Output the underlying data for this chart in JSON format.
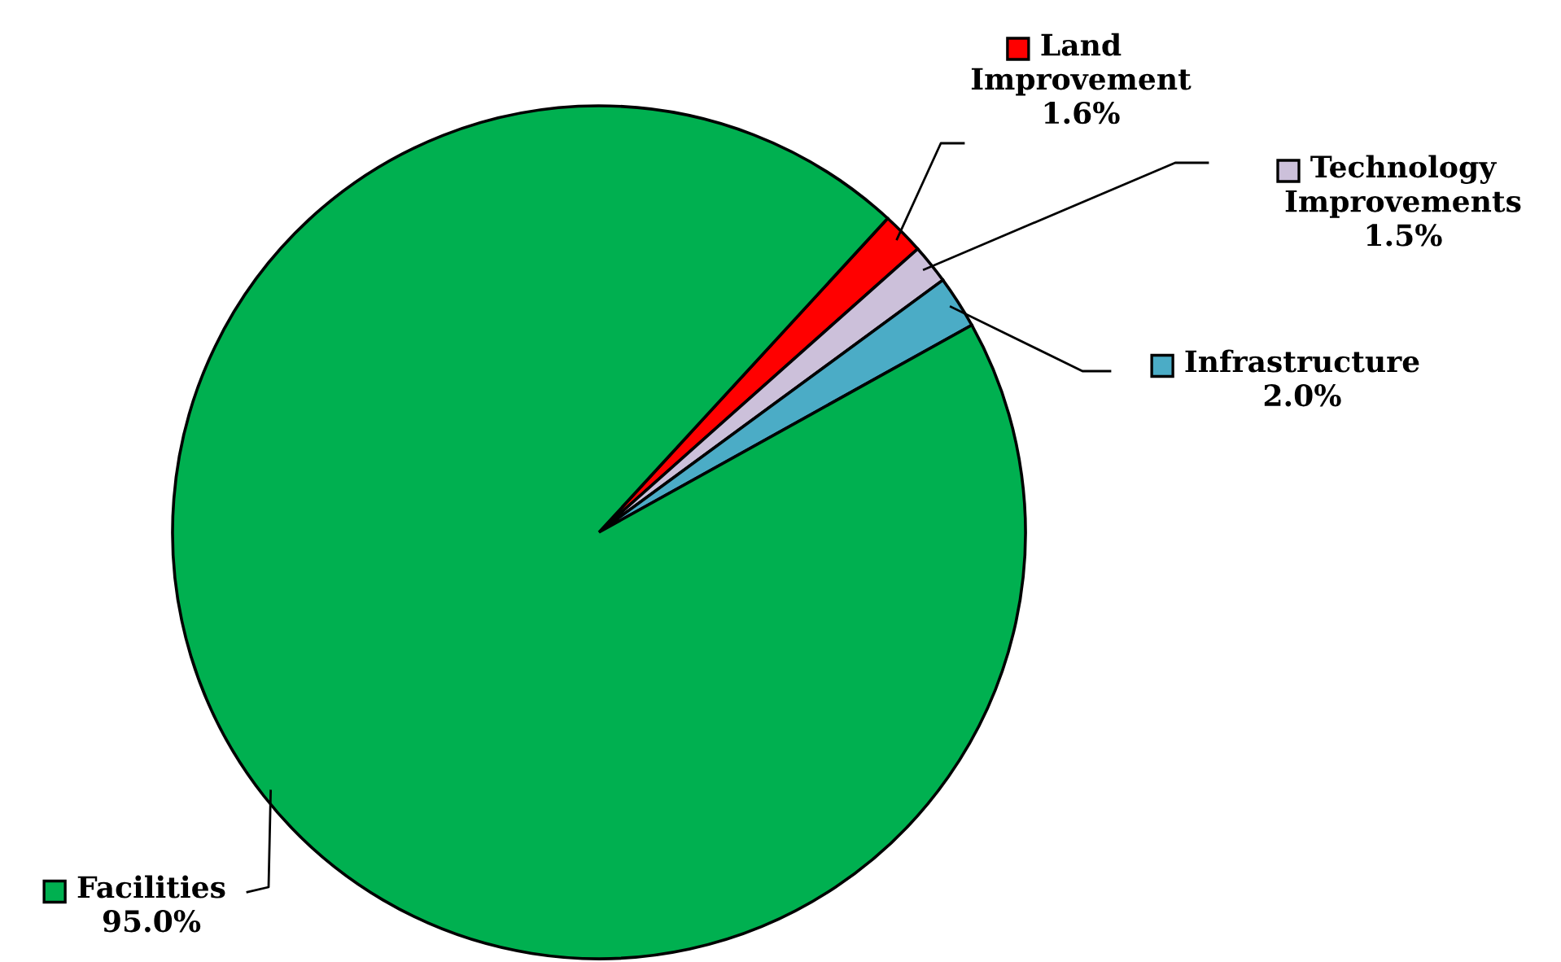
{
  "chart_data": {
    "type": "pie",
    "categories": [
      "Land\nImprovement",
      "Technology\nImprovements",
      "Infrastructure",
      "Facilities"
    ],
    "values": [
      1.6,
      1.5,
      2.0,
      95.0
    ],
    "value_labels": [
      "1.6%",
      "1.5%",
      "2.0%",
      "95.0%"
    ],
    "colors": [
      "#ff0000",
      "#ccc0da",
      "#4bacc6",
      "#00b050"
    ],
    "legend": "right"
  }
}
